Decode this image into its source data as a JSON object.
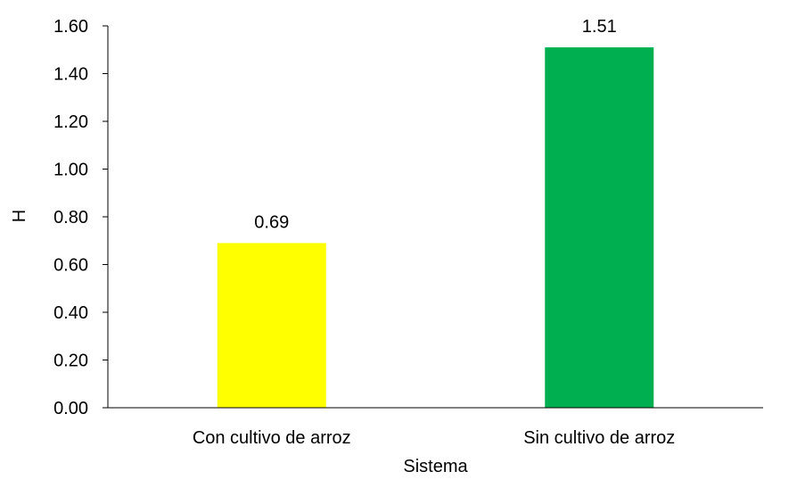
{
  "chart_data": {
    "type": "bar",
    "title": "",
    "xlabel": "Sistema",
    "ylabel": "H",
    "categories": [
      "Con cultivo de arroz",
      "Sin cultivo de arroz"
    ],
    "values": [
      0.69,
      1.51
    ],
    "data_labels": [
      "0.69",
      "1.51"
    ],
    "bar_colors": [
      "#FFFF00",
      "#00B050"
    ],
    "ylim": [
      0,
      1.6
    ],
    "yticks": [
      "0.00",
      "0.20",
      "0.40",
      "0.60",
      "0.80",
      "1.00",
      "1.20",
      "1.40",
      "1.60"
    ],
    "grid": false,
    "legend": "none"
  }
}
